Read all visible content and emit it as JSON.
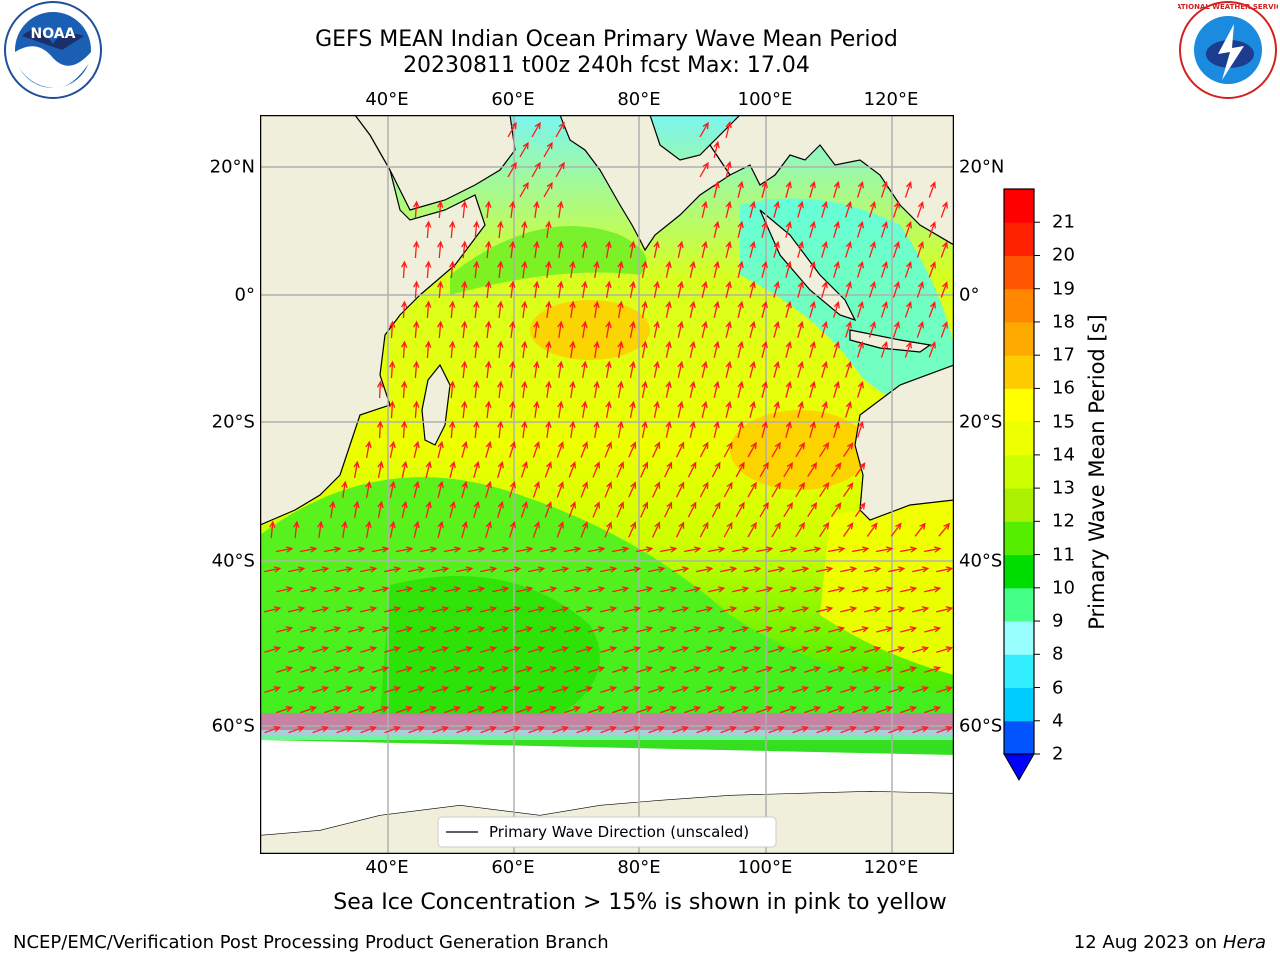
{
  "title": {
    "line1": "GEFS MEAN Indian Ocean Primary Wave Mean Period",
    "line2": "20230811 t00z 240h fcst   Max: 17.04"
  },
  "logos": {
    "left": "noaa-logo",
    "right": "national-weather-service-logo",
    "left_text": "NOAA",
    "right_text": "NATIONAL WEATHER SERVICE"
  },
  "axes": {
    "lon_labels": [
      "40°E",
      "60°E",
      "80°E",
      "100°E",
      "120°E"
    ],
    "lat_labels": [
      "20°N",
      "0°",
      "20°S",
      "40°S",
      "60°S"
    ]
  },
  "legend": {
    "label": "Primary Wave Direction (unscaled)"
  },
  "colorbar": {
    "label": "Primary Wave Mean Period [s]",
    "ticks": [
      "2",
      "4",
      "6",
      "8",
      "9",
      "10",
      "11",
      "12",
      "13",
      "14",
      "15",
      "16",
      "17",
      "18",
      "19",
      "20",
      "21"
    ],
    "colors": [
      "#0055ff",
      "#00ccff",
      "#33eeff",
      "#99ffff",
      "#44ff88",
      "#00dd00",
      "#55ee00",
      "#aaf000",
      "#ccff00",
      "#eeff00",
      "#ffff00",
      "#ffcc00",
      "#ffaa00",
      "#ff8800",
      "#ff5500",
      "#ff2200",
      "#ff0000"
    ],
    "extend": "min",
    "extend_color": "#0000ff"
  },
  "note": "Sea Ice Concentration > 15% is shown in pink to yellow",
  "footer": {
    "left": "NCEP/EMC/Verification Post Processing Product Generation Branch",
    "date": "12 Aug 2023 on",
    "host": "Hera"
  },
  "chart_data": {
    "type": "heatmap",
    "title": "GEFS MEAN Indian Ocean Primary Wave Mean Period",
    "subtitle": "20230811 t00z 240h fcst   Max: 17.04",
    "variable": "Primary Wave Mean Period [s]",
    "max": 17.04,
    "lon_range": [
      20,
      130
    ],
    "lat_range": [
      -77,
      28
    ],
    "levels": [
      2,
      4,
      6,
      8,
      9,
      10,
      11,
      12,
      13,
      14,
      15,
      16,
      17,
      18,
      19,
      20,
      21
    ],
    "overlay": "Primary Wave Direction (unscaled)",
    "grid": true
  }
}
